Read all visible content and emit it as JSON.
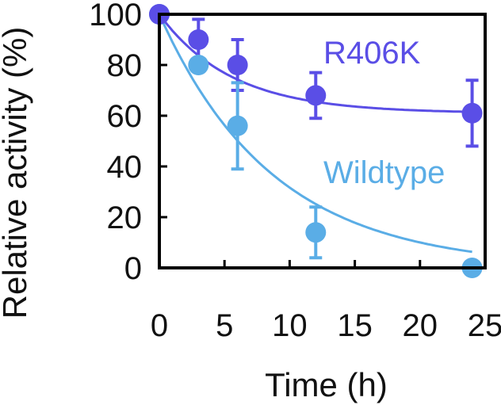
{
  "chart_data": {
    "type": "scatter",
    "title": "",
    "xlabel": "Time (h)",
    "ylabel": "Relative activity (%)",
    "xlim": [
      0,
      25
    ],
    "ylim": [
      0,
      100
    ],
    "xticks": [
      0,
      5,
      10,
      15,
      20,
      25
    ],
    "yticks": [
      0,
      20,
      40,
      60,
      80,
      100
    ],
    "grid": false,
    "series": [
      {
        "name": "R406K",
        "color": "#5a4ee6",
        "x": [
          0,
          3,
          6,
          12,
          24
        ],
        "y": [
          100,
          90,
          80,
          68,
          61
        ],
        "error": [
          0,
          8,
          10,
          9,
          13
        ],
        "fit": {
          "model": "exponential decay to plateau",
          "plateau": 61,
          "k": 0.18
        }
      },
      {
        "name": "Wildtype",
        "color": "#5aade6",
        "x": [
          0,
          3,
          6,
          12,
          24
        ],
        "y": [
          100,
          80,
          56,
          14,
          0
        ],
        "error": [
          0,
          0,
          17,
          10,
          0
        ],
        "fit": {
          "model": "exponential decay",
          "k": 0.115
        }
      }
    ]
  }
}
